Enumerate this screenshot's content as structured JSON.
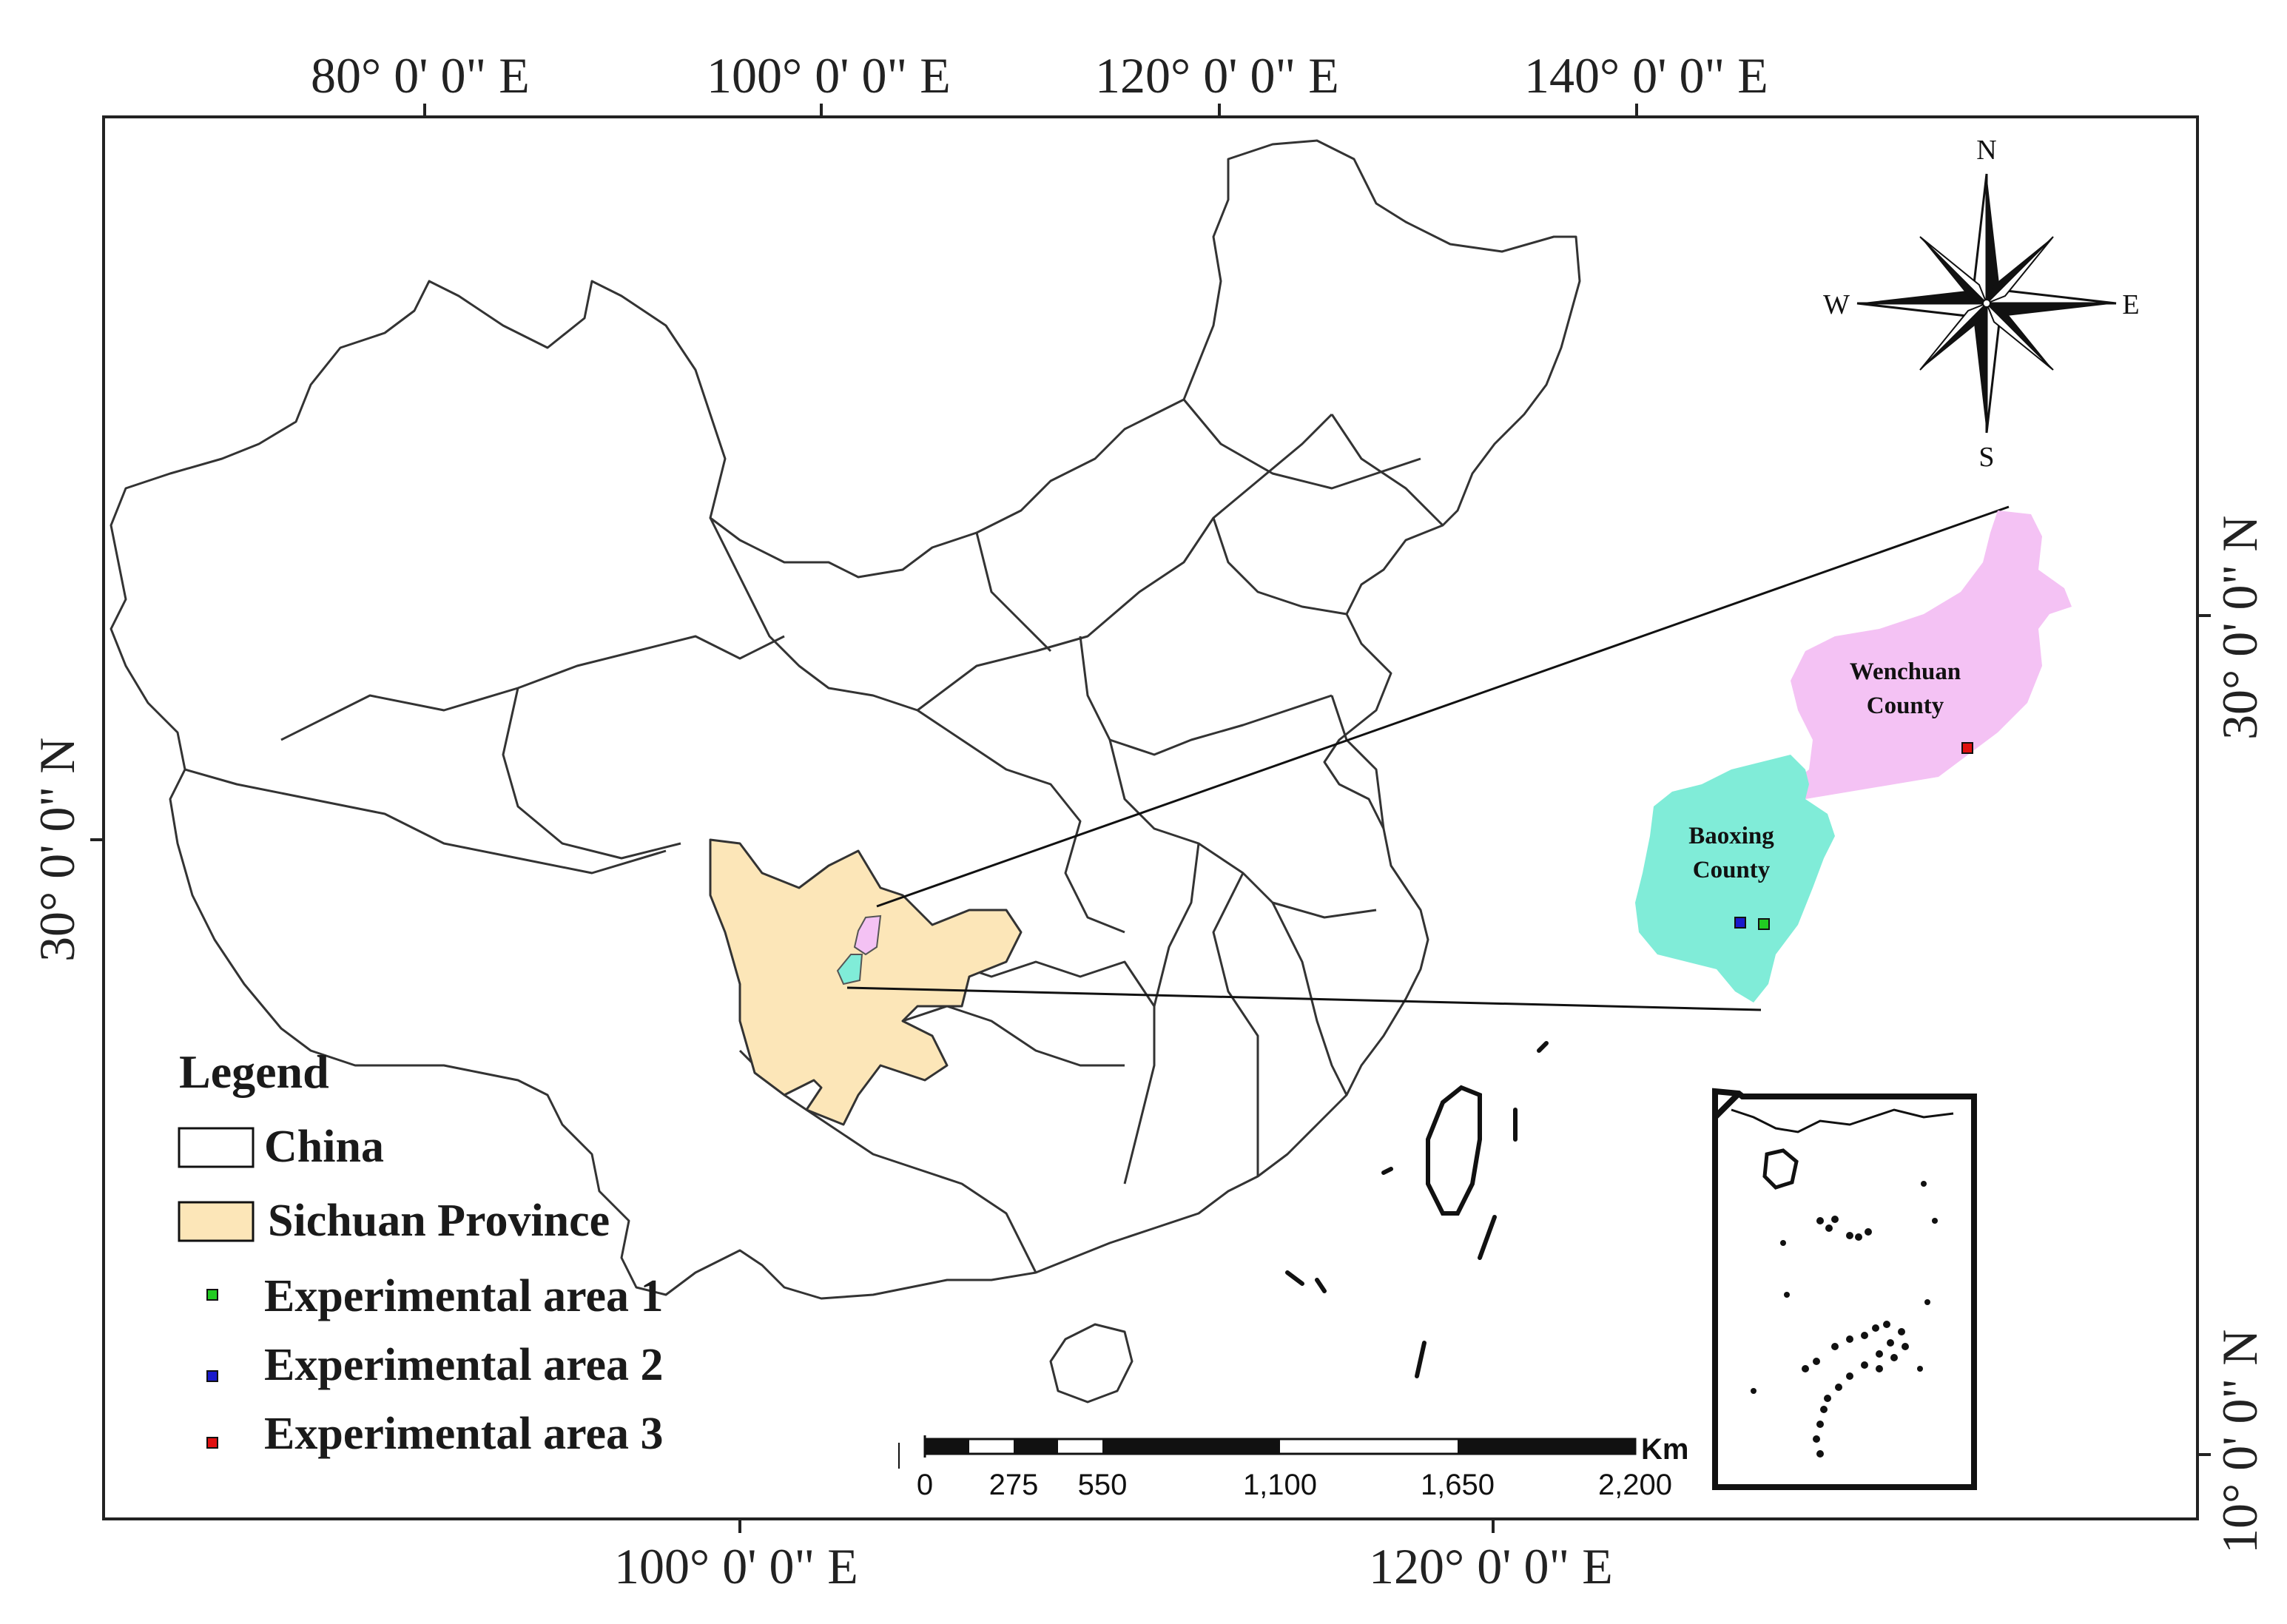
{
  "coordinates": {
    "top": [
      "80°  0' 0\" E",
      "100°  0' 0\" E",
      "120°  0' 0\" E",
      "140°  0' 0\" E"
    ],
    "bottom": [
      "100°  0' 0\" E",
      "120°  0' 0\" E"
    ],
    "left": [
      "30°  0' 0\" N"
    ],
    "right": [
      "30°  0' 0\" N",
      "10°  0' 0\" N"
    ]
  },
  "compass": {
    "north": "N",
    "south": "S",
    "east": "E",
    "west": "W"
  },
  "legend": {
    "title": "Legend",
    "items": [
      {
        "label": "China",
        "color": "#ffffff"
      },
      {
        "label": "Sichuan Province",
        "color": "#fce6b8"
      },
      {
        "label": "Experimental area 1",
        "color": "#22cc22"
      },
      {
        "label": "Experimental area 2",
        "color": "#1a1acc"
      },
      {
        "label": "Experimental area 3",
        "color": "#e01010"
      }
    ]
  },
  "counties": {
    "wenchuan": {
      "line1": "Wenchuan",
      "line2": "County",
      "color": "#f4c2f4"
    },
    "baoxing": {
      "line1": "Baoxing",
      "line2": "County",
      "color": "#80ecd8"
    }
  },
  "scale_bar": {
    "ticks": [
      "0",
      "275",
      "550",
      "1,100",
      "1,650",
      "2,200"
    ],
    "unit": "Km"
  }
}
